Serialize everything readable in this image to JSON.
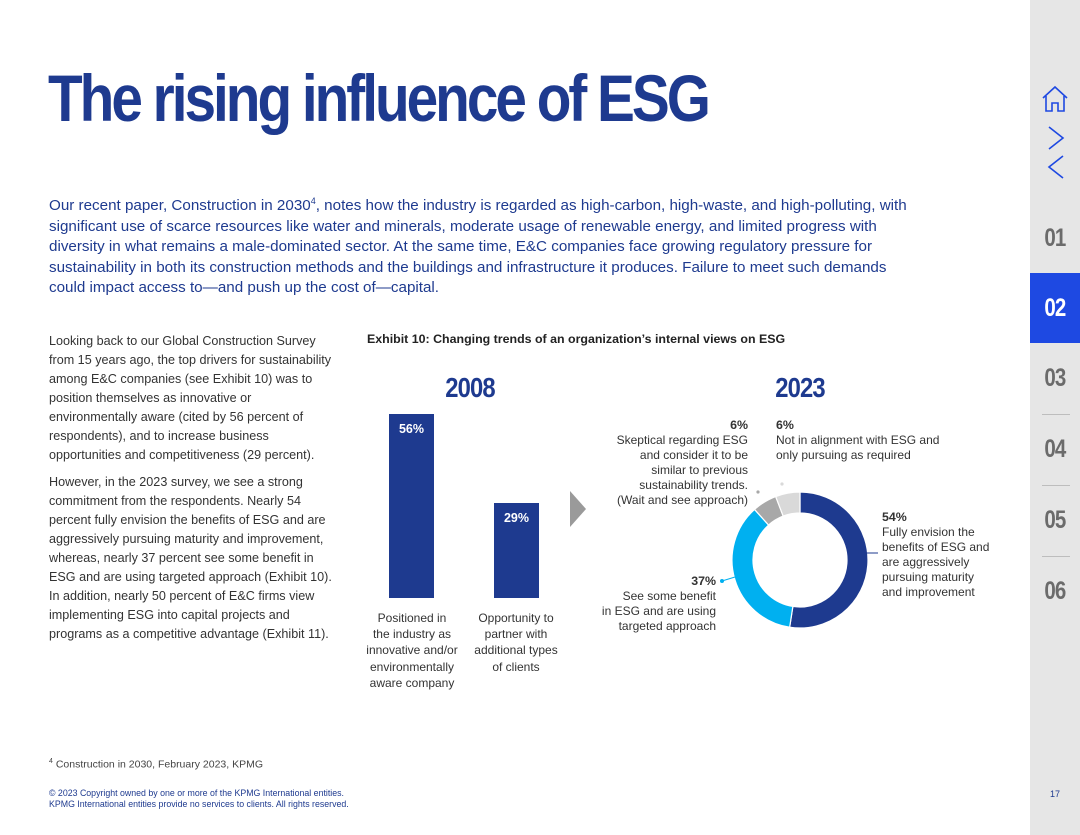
{
  "title": "The rising influence of ESG",
  "intro": {
    "text_a": "Our recent paper, Construction in 2030",
    "sup": "4",
    "text_b": ", notes how the industry is regarded as high-carbon, high-waste, and high-polluting, with significant use of scarce resources like water and minerals, moderate usage of renewable energy, and limited progress with diversity in what remains a male-dominated sector. At the same time, E&C companies face growing regulatory pressure for sustainability in both its construction methods and the buildings and infrastructure it produces. Failure to meet such demands could impact access to—and push up the cost of—capital."
  },
  "body": {
    "p1": "Looking back to our Global Construction Survey from 15 years ago, the top drivers for sustainability among E&C companies (see Exhibit 10) was to position themselves as innovative or environmentally aware (cited by 56 percent of respondents), and to increase business opportunities and competitiveness (29 percent).",
    "p2": "However, in the 2023 survey, we see a strong commitment from the respondents. Nearly 54 percent fully envision the benefits of ESG and are aggressively pursuing maturity and improvement, whereas, nearly 37 percent see some benefit in ESG and are using targeted approach (Exhibit 10). In addition, nearly 50 percent of E&C firms view implementing ESG into capital projects and programs as a competitive advantage (Exhibit 11)."
  },
  "chart_data": [
    {
      "type": "bar",
      "title": "2008",
      "categories": [
        "Positioned in the industry as innovative and/or environmentally aware company",
        "Opportunity to partner with additional types of clients"
      ],
      "values": [
        56,
        29
      ],
      "value_labels": [
        "56%",
        "29%"
      ],
      "ylim": [
        0,
        56
      ]
    },
    {
      "type": "pie",
      "title": "2023",
      "slices": [
        {
          "label": "Fully envision the benefits of ESG and are aggressively pursuing maturity and improvement",
          "value": 54,
          "pct_label": "54%",
          "color": "#1e3a8f"
        },
        {
          "label": "See some benefit in ESG and are using targeted approach",
          "value": 37,
          "pct_label": "37%",
          "color": "#00b0f0"
        },
        {
          "label": "Skeptical regarding ESG and consider it to be similar to previous sustainability trends. (Wait and see approach)",
          "value": 6,
          "pct_label": "6%",
          "color": "#a8a8a8"
        },
        {
          "label": "Not in alignment with ESG and only pursuing as required",
          "value": 6,
          "pct_label": "6%",
          "color": "#d9d9d9"
        }
      ]
    }
  ],
  "exhibit": {
    "title": "Exhibit 10: Changing trends of an organization’s internal views on ESG",
    "year_left": "2008",
    "year_right": "2023",
    "bar1_label": "56%",
    "bar2_label": "29%",
    "cat1_lines": [
      "Positioned in",
      "the industry as",
      "innovative and/or",
      "environmentally",
      "aware company"
    ],
    "cat2_lines": [
      "Opportunity to",
      "partner with",
      "additional types",
      "of clients"
    ],
    "ann54_pct": "54%",
    "ann54_lines": [
      "Fully envision the",
      "benefits of ESG and",
      "are aggressively",
      "pursuing maturity",
      "and improvement"
    ],
    "ann37_pct": "37%",
    "ann37_lines": [
      "See some benefit",
      "in ESG and are using",
      "targeted approach"
    ],
    "ann6a_pct": "6%",
    "ann6a_lines": [
      "Skeptical regarding ESG",
      "and consider it to be",
      "similar to previous",
      "sustainability trends.",
      "(Wait and see approach)"
    ],
    "ann6b_pct": "6%",
    "ann6b_lines": [
      "Not in alignment with ESG and",
      "only pursuing as required"
    ]
  },
  "footnote": {
    "sup": "4",
    "text": "Construction in 2030, February 2023, KPMG"
  },
  "copyright": {
    "line1": "© 2023 Copyright owned by one or more of the KPMG International entities.",
    "line2": "KPMG International entities provide no services to clients. All rights reserved."
  },
  "page_number": "17",
  "nav": {
    "icons": [
      "home-icon",
      "chevron-right-icon",
      "chevron-left-icon"
    ],
    "sections": [
      "01",
      "02",
      "03",
      "04",
      "05",
      "06"
    ],
    "active": "02",
    "active_color": "#1e49e2"
  },
  "colors": {
    "brand_blue": "#1e3a8f",
    "light_blue": "#00b0f0",
    "grey": "#a8a8a8",
    "light_grey": "#d9d9d9"
  }
}
